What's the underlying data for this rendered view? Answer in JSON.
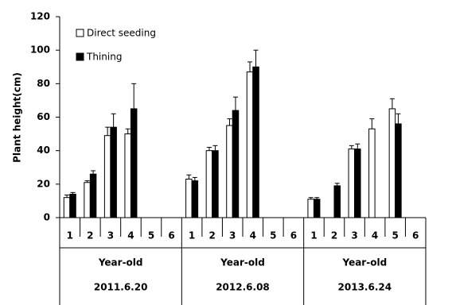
{
  "chart_data": {
    "type": "bar",
    "ylabel": "Plant height(cm)",
    "categories": [
      "1",
      "2",
      "3",
      "4",
      "5",
      "6",
      "1",
      "2",
      "3",
      "4",
      "5",
      "6",
      "1",
      "2",
      "3",
      "4",
      "5",
      "6"
    ],
    "groups": [
      {
        "label": "Year-old",
        "date": "2011.6.20"
      },
      {
        "label": "Year-old",
        "date": "2012.6.08"
      },
      {
        "label": "Year-old",
        "date": "2013.6.24"
      }
    ],
    "series": [
      {
        "name": "Direct seeding",
        "color": "#ffffff",
        "values": [
          12,
          21,
          49,
          50,
          null,
          null,
          23,
          40,
          55,
          87,
          null,
          null,
          11,
          null,
          41,
          53,
          65,
          null
        ],
        "errors": [
          1.5,
          1,
          5,
          3,
          null,
          null,
          2.5,
          2,
          4,
          6,
          null,
          null,
          1,
          null,
          2,
          6,
          6,
          null
        ]
      },
      {
        "name": "Thining",
        "color": "#000000",
        "values": [
          14,
          26,
          54,
          65,
          null,
          null,
          22,
          40,
          64,
          90,
          null,
          null,
          11,
          19,
          41,
          null,
          56,
          null
        ],
        "errors": [
          1,
          2,
          8,
          15,
          null,
          null,
          2,
          3,
          8,
          10,
          null,
          null,
          1,
          1.5,
          3,
          null,
          6,
          null
        ]
      }
    ],
    "ylim": [
      0,
      120
    ],
    "yticks": [
      0,
      20,
      40,
      60,
      80,
      100,
      120
    ]
  }
}
